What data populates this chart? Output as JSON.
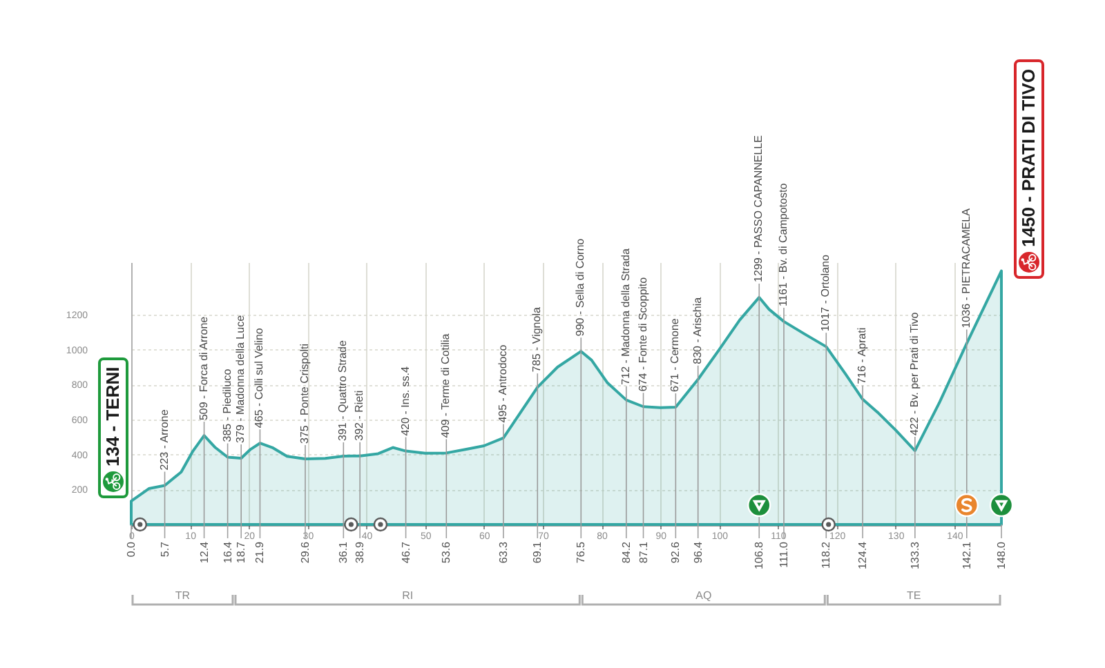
{
  "chart_data": {
    "type": "area",
    "color": "#34a7a3",
    "x": [
      0,
      3,
      5.7,
      8.5,
      10.5,
      12.4,
      14.3,
      16.4,
      18.7,
      20.3,
      21.9,
      24,
      26.5,
      29.6,
      33,
      36.1,
      38.9,
      42,
      44.5,
      46.7,
      50,
      53.6,
      57,
      60,
      63.3,
      66,
      69.1,
      72.5,
      76.5,
      78.3,
      81,
      84.2,
      87.1,
      90,
      92.6,
      96.4,
      100,
      103.5,
      106.8,
      108.5,
      111,
      114.5,
      118.2,
      121.5,
      124.4,
      127,
      130,
      133.3,
      137.5,
      142.1,
      148
    ],
    "values": [
      134,
      205,
      223,
      300,
      420,
      509,
      440,
      385,
      379,
      430,
      465,
      440,
      390,
      375,
      378,
      391,
      392,
      405,
      440,
      420,
      408,
      409,
      430,
      450,
      495,
      630,
      785,
      900,
      990,
      940,
      810,
      712,
      674,
      668,
      671,
      830,
      1000,
      1170,
      1299,
      1230,
      1161,
      1090,
      1017,
      860,
      716,
      640,
      540,
      422,
      700,
      1036,
      1450
    ],
    "xlim": [
      0,
      148
    ],
    "xticks": [
      0,
      10,
      20,
      30,
      40,
      50,
      60,
      70,
      80,
      90,
      100,
      110,
      120,
      130,
      140
    ],
    "x2lim": [
      0,
      148
    ],
    "x2ticks": [
      {
        "value": 0,
        "label": "0.0"
      },
      5.7,
      12.4,
      16.4,
      18.7,
      21.9,
      29.6,
      36.1,
      38.9,
      46.7,
      53.6,
      63.3,
      69.1,
      76.5,
      84.2,
      87.1,
      92.6,
      96.4,
      106.8,
      {
        "value": 111,
        "label": "111.0"
      },
      118.2,
      124.4,
      133.3,
      142.1,
      {
        "value": 148,
        "label": "148.0"
      }
    ],
    "ylim": [
      0,
      1500
    ],
    "yticks": [
      200,
      400,
      600,
      800,
      1000,
      1200
    ],
    "grid": true,
    "annotations": [
      {
        "text": "134 - TERNI",
        "x": 0,
        "y": 134
      },
      {
        "text": "223 - Arrone",
        "x": 5.7,
        "y": 223
      },
      {
        "text": "509 - Forca di Arrone",
        "x": 12.4,
        "y": 509
      },
      {
        "text": "385 - Piediluco",
        "x": 16.4,
        "y": 385
      },
      {
        "text": "379 - Madonna della Luce",
        "x": 18.7,
        "y": 379
      },
      {
        "text": "465 - Colli sul Velino",
        "x": 21.9,
        "y": 465
      },
      {
        "text": "375 - Ponte Crispolti",
        "x": 29.6,
        "y": 375
      },
      {
        "text": "391 - Quattro Strade",
        "x": 36.1,
        "y": 391
      },
      {
        "text": "392 - Rieti",
        "x": 38.9,
        "y": 392
      },
      {
        "text": "420 - Ins. ss.4",
        "x": 46.7,
        "y": 420
      },
      {
        "text": "409 - Terme di Cotilia",
        "x": 53.6,
        "y": 409
      },
      {
        "text": "495 - Antrodoco",
        "x": 63.3,
        "y": 495
      },
      {
        "text": "785 - Vignola",
        "x": 69.1,
        "y": 785
      },
      {
        "text": "990 - Sella di Corno",
        "x": 76.5,
        "y": 990
      },
      {
        "text": "712 - Madonna della Strada",
        "x": 84.2,
        "y": 712
      },
      {
        "text": "674 - Fonte di Scoppito",
        "x": 87.1,
        "y": 674
      },
      {
        "text": "671 - Cermone",
        "x": 92.6,
        "y": 671
      },
      {
        "text": "830 - Arischia",
        "x": 96.4,
        "y": 830
      },
      {
        "text": "1299 - PASSO CAPANNELLE",
        "x": 106.8,
        "y": 1299
      },
      {
        "text": "1161 - Bv. di Campotosto",
        "x": 111,
        "y": 1161
      },
      {
        "text": "1017 - Ortolano",
        "x": 118.2,
        "y": 1017
      },
      {
        "text": "716 - Aprati",
        "x": 124.4,
        "y": 716
      },
      {
        "text": "422 - Bv. per Prati di Tivo",
        "x": 133.3,
        "y": 422
      },
      {
        "text": "1036 - PIETRACAMELA",
        "x": 142.1,
        "y": 1036
      },
      {
        "text": "1450 - PRATI DI TIVO",
        "x": 148,
        "y": 1450
      },
      "TR",
      "RI",
      "AQ",
      "TE"
    ]
  }
}
